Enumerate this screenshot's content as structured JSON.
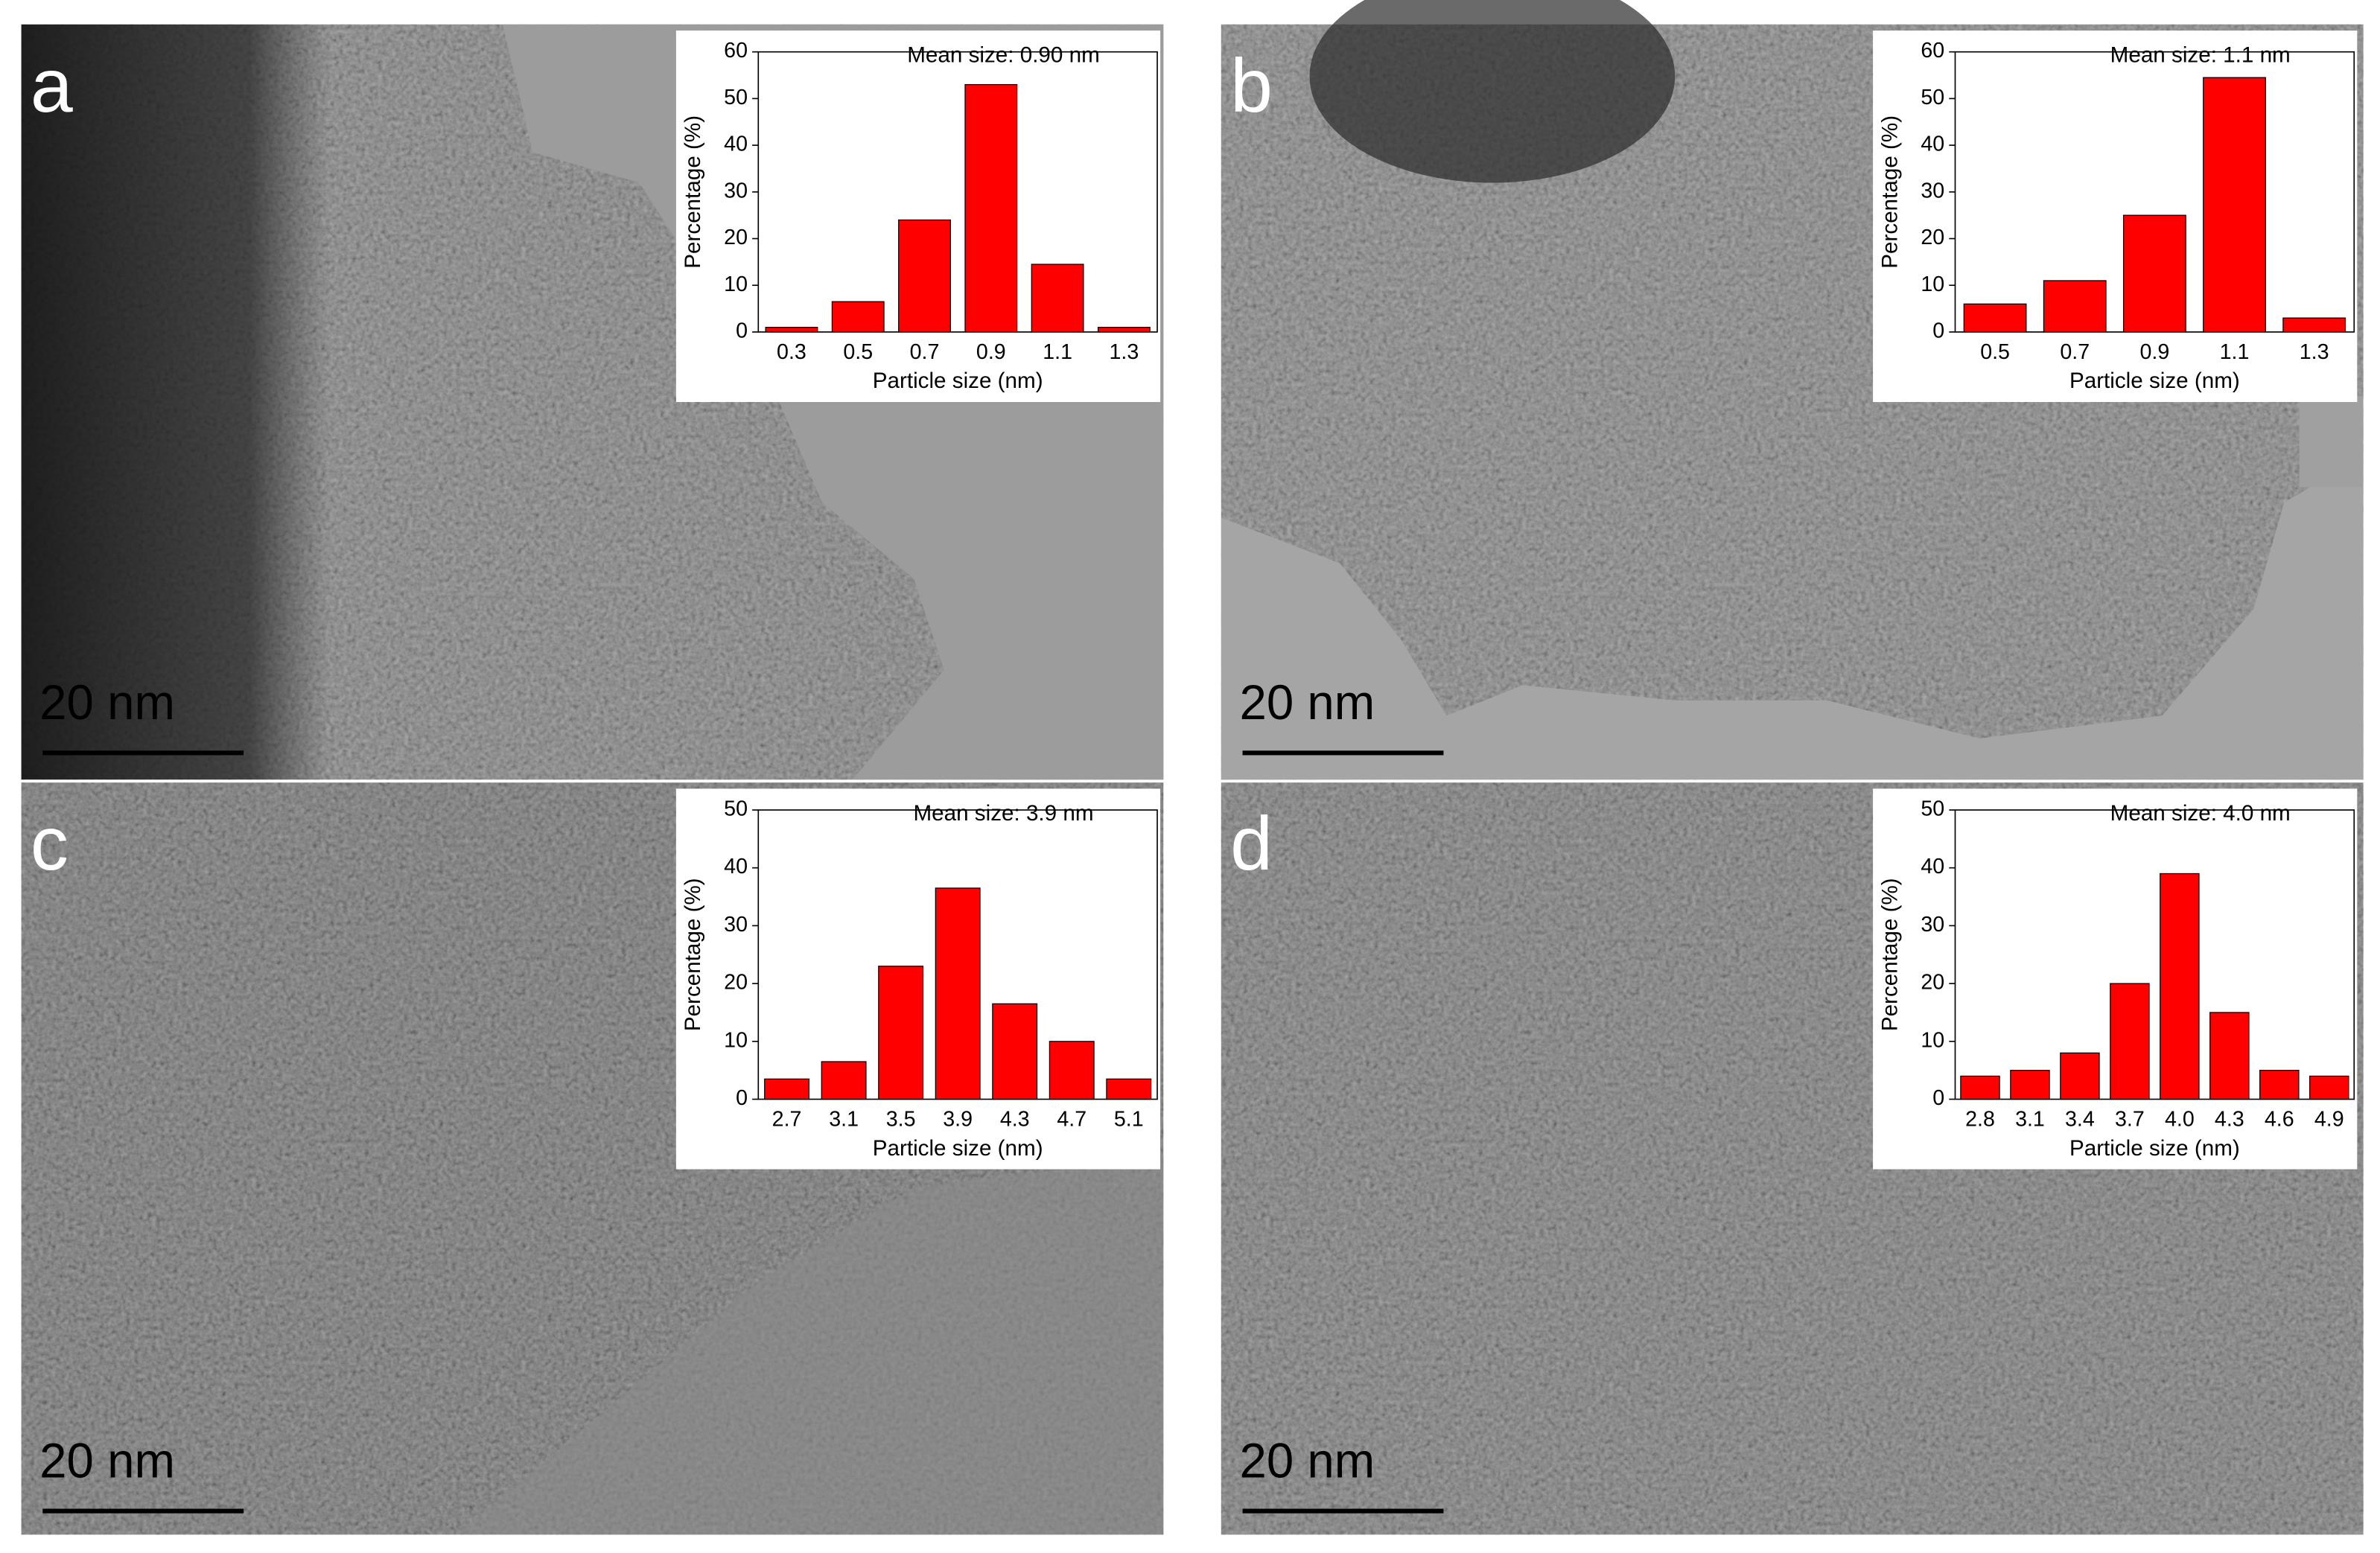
{
  "panels": [
    {
      "label": "a",
      "scale_bar": "20 nm"
    },
    {
      "label": "b",
      "scale_bar": "20 nm"
    },
    {
      "label": "c",
      "scale_bar": "20 nm"
    },
    {
      "label": "d",
      "scale_bar": "20 nm"
    }
  ],
  "chart_data": [
    {
      "type": "bar",
      "title": "Mean size: 0.90 nm",
      "x_label": "Particle size (nm)",
      "y_label": "Percentage (%)",
      "categories": [
        "0.3",
        "0.5",
        "0.7",
        "0.9",
        "1.1",
        "1.3"
      ],
      "values": [
        1,
        6.5,
        24,
        53,
        14.5,
        1
      ],
      "color": "#ff0000",
      "ylim": [
        0,
        60
      ],
      "yticks": [
        0,
        10,
        20,
        30,
        40,
        50,
        60
      ]
    },
    {
      "type": "bar",
      "title": "Mean size: 1.1 nm",
      "x_label": "Particle size (nm)",
      "y_label": "Percentage (%)",
      "categories": [
        "0.5",
        "0.7",
        "0.9",
        "1.1",
        "1.3"
      ],
      "values": [
        6,
        11,
        25,
        54.5,
        3
      ],
      "color": "#ff0000",
      "ylim": [
        0,
        60
      ],
      "yticks": [
        0,
        10,
        20,
        30,
        40,
        50,
        60
      ]
    },
    {
      "type": "bar",
      "title": "Mean size: 3.9 nm",
      "x_label": "Particle size (nm)",
      "y_label": "Percentage (%)",
      "categories": [
        "2.7",
        "3.1",
        "3.5",
        "3.9",
        "4.3",
        "4.7",
        "5.1"
      ],
      "values": [
        3.5,
        6.5,
        23,
        36.5,
        16.5,
        10,
        3.5
      ],
      "color": "#ff0000",
      "ylim": [
        0,
        50
      ],
      "yticks": [
        0,
        10,
        20,
        30,
        40,
        50
      ]
    },
    {
      "type": "bar",
      "title": "Mean size: 4.0 nm",
      "x_label": "Particle size (nm)",
      "y_label": "Percentage (%)",
      "categories": [
        "2.8",
        "3.1",
        "3.4",
        "3.7",
        "4.0",
        "4.3",
        "4.6",
        "4.9"
      ],
      "values": [
        4,
        5,
        8,
        20,
        39,
        15,
        5,
        4
      ],
      "color": "#ff0000",
      "ylim": [
        0,
        50
      ],
      "yticks": [
        0,
        10,
        20,
        30,
        40,
        50
      ]
    }
  ]
}
